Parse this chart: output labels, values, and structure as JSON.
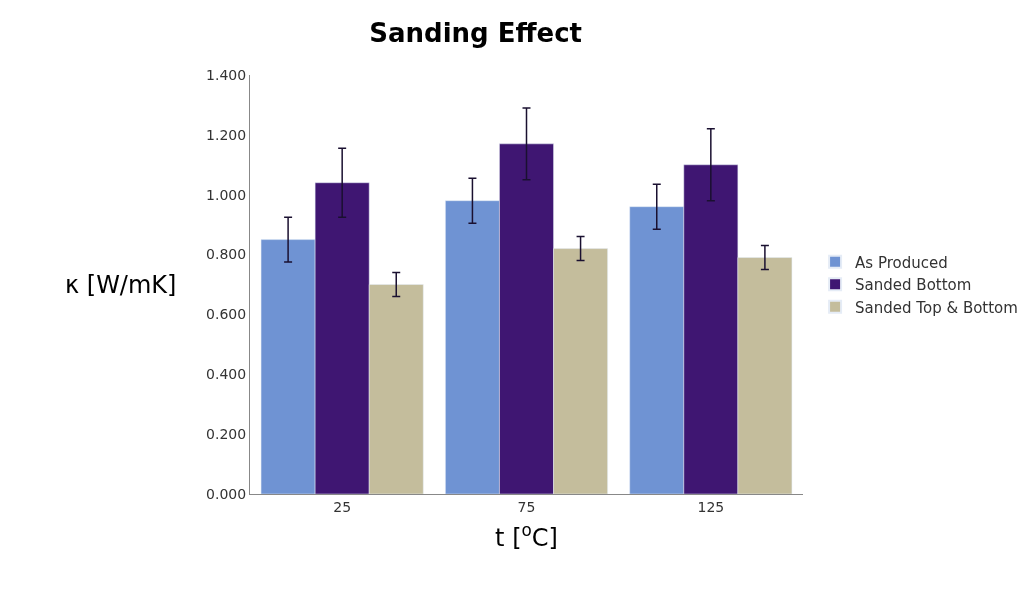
{
  "chart_data": {
    "type": "bar",
    "title": "Sanding Effect",
    "xlabel": "t [$^{o}$C]",
    "ylabel": "κ [W/mK]",
    "categories": [
      "25",
      "75",
      "125"
    ],
    "series": [
      {
        "name": "As Produced",
        "color": "#6f93d3",
        "values": [
          0.85,
          0.98,
          0.96
        ],
        "errors": [
          0.075,
          0.075,
          0.075
        ]
      },
      {
        "name": "Sanded Bottom",
        "color": "#3f1672",
        "values": [
          1.04,
          1.17,
          1.1
        ],
        "errors": [
          0.115,
          0.12,
          0.12
        ]
      },
      {
        "name": "Sanded Top & Bottom",
        "color": "#c4bd9c",
        "values": [
          0.7,
          0.82,
          0.79
        ],
        "errors": [
          0.04,
          0.04,
          0.04
        ]
      }
    ],
    "ylim": [
      0,
      1.4
    ],
    "yticks": [
      {
        "value": 0,
        "label": "0.000"
      },
      {
        "value": 0.2,
        "label": "0.200"
      },
      {
        "value": 0.4,
        "label": "0.400"
      },
      {
        "value": 0.6,
        "label": "0.600"
      },
      {
        "value": 0.8,
        "label": "0.800"
      },
      {
        "value": 1.0,
        "label": "1.000"
      },
      {
        "value": 1.2,
        "label": "1.200"
      },
      {
        "value": 1.4,
        "label": "1.400"
      }
    ],
    "legend": "right"
  }
}
